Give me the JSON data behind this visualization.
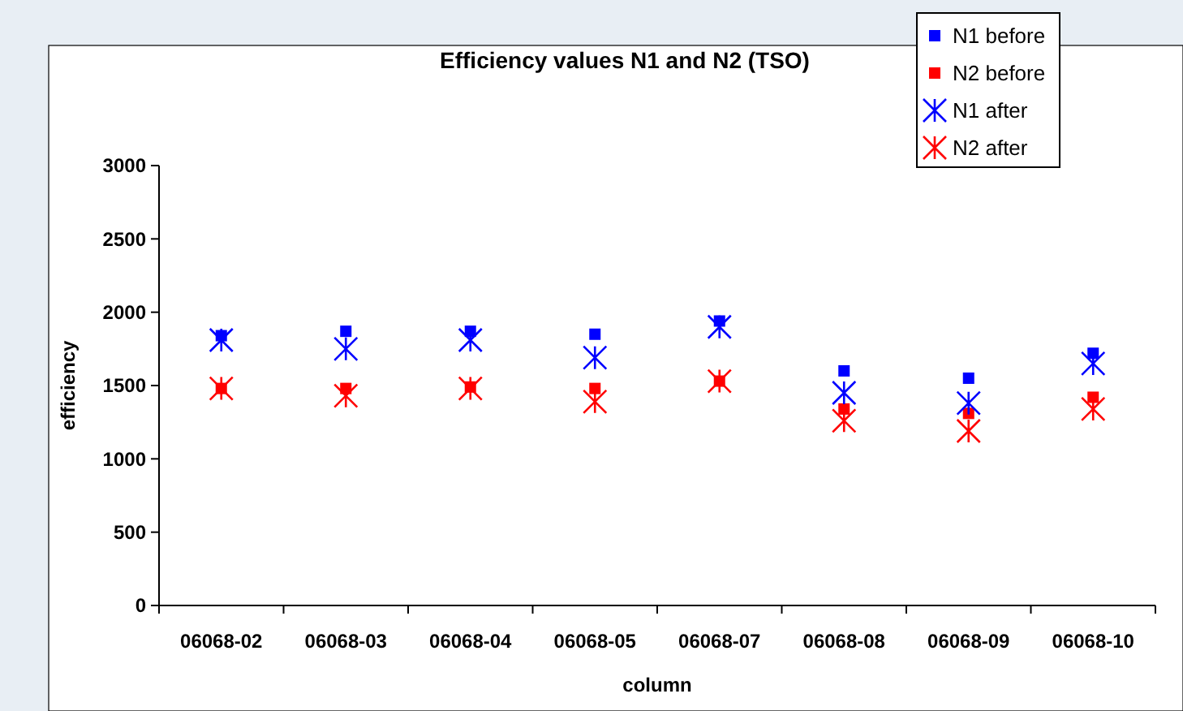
{
  "chart_data": {
    "type": "scatter",
    "title": "Efficiency values N1 and N2 (TSO)",
    "xlabel": "column",
    "ylabel": "efficiency",
    "categories": [
      "06068-02",
      "06068-03",
      "06068-04",
      "06068-05",
      "06068-07",
      "06068-08",
      "06068-09",
      "06068-10"
    ],
    "ylim": [
      0,
      3000
    ],
    "yticks": [
      0,
      500,
      1000,
      1500,
      2000,
      2500,
      3000
    ],
    "grid": false,
    "legend": "top right",
    "series": [
      {
        "name": "N1 before",
        "color": "#0000ff",
        "marker": "square",
        "values": [
          1840,
          1870,
          1870,
          1850,
          1940,
          1600,
          1550,
          1720
        ]
      },
      {
        "name": "N2 before",
        "color": "#ff0000",
        "marker": "square",
        "values": [
          1480,
          1480,
          1490,
          1480,
          1530,
          1340,
          1310,
          1420
        ]
      },
      {
        "name": "N1 after",
        "color": "#0000ff",
        "marker": "cross",
        "values": [
          1810,
          1750,
          1810,
          1690,
          1900,
          1450,
          1380,
          1650
        ]
      },
      {
        "name": "N2 after",
        "color": "#ff0000",
        "marker": "cross",
        "values": [
          1480,
          1430,
          1480,
          1390,
          1530,
          1260,
          1190,
          1340
        ]
      }
    ]
  }
}
